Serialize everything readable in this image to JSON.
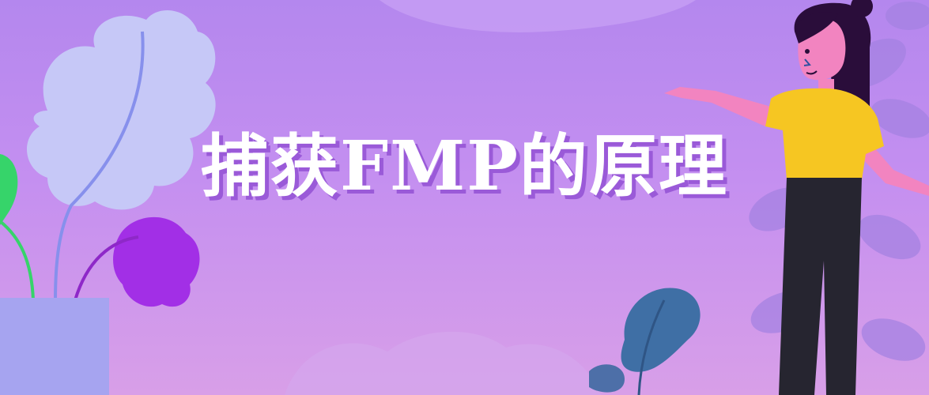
{
  "banner": {
    "headline": "捕获FMP的原理",
    "colors": {
      "background_top": "#b487ee",
      "background_bottom": "#d89fe8",
      "text": "#ffffff",
      "text_shadow": "#9a5ad8"
    }
  }
}
